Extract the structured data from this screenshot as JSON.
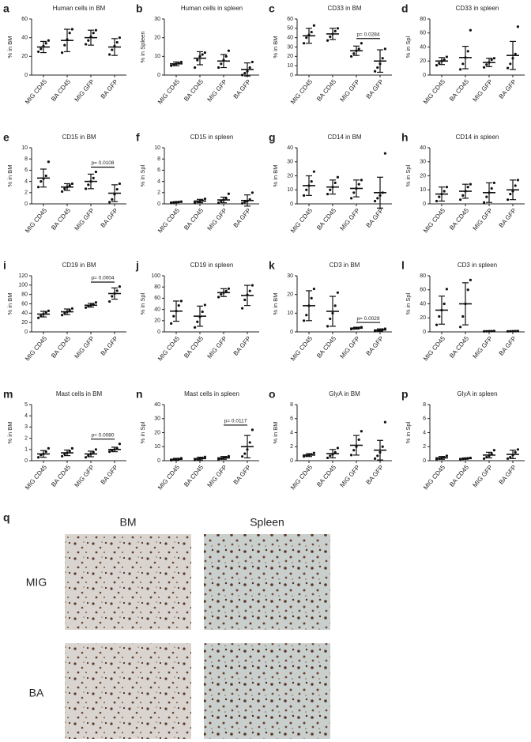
{
  "chart_data": [
    {
      "type": "dot",
      "letter": "a",
      "title": "Human cells in BM",
      "ylabel": "% in BM",
      "categories": [
        "MIG CD45",
        "BA CD45",
        "MIG GFP",
        "BA GFP"
      ],
      "ylim": [
        0,
        60
      ],
      "yticks": [
        0,
        20,
        40,
        60
      ],
      "groups": [
        {
          "mean": 30,
          "sd": 6,
          "points": [
            25,
            28,
            31,
            34,
            37
          ]
        },
        {
          "mean": 37,
          "sd": 12,
          "points": [
            24,
            32,
            38,
            45,
            49
          ]
        },
        {
          "mean": 40,
          "sd": 8,
          "points": [
            33,
            37,
            41,
            45,
            48
          ]
        },
        {
          "mean": 30,
          "sd": 9,
          "points": [
            22,
            27,
            31,
            35,
            40
          ]
        }
      ]
    },
    {
      "type": "dot",
      "letter": "b",
      "title": "Human cells in spleen",
      "ylabel": "% in Spleen",
      "categories": [
        "MIG CD45",
        "BA CD45",
        "MIG GFP",
        "BA GFP"
      ],
      "ylim": [
        0,
        30
      ],
      "yticks": [
        0,
        10,
        20,
        30
      ],
      "groups": [
        {
          "mean": 6,
          "sd": 1,
          "points": [
            5,
            5.5,
            6,
            6.5,
            7
          ]
        },
        {
          "mean": 9,
          "sd": 3.5,
          "points": [
            4,
            8,
            10,
            11,
            12
          ]
        },
        {
          "mean": 7.5,
          "sd": 3.5,
          "points": [
            4,
            6,
            8,
            10,
            13
          ]
        },
        {
          "mean": 3,
          "sd": 3.5,
          "points": [
            0,
            1,
            2,
            4,
            7
          ]
        }
      ]
    },
    {
      "type": "dot",
      "letter": "c",
      "title": "CD33 in BM",
      "ylabel": "% in BM",
      "categories": [
        "MIG CD45",
        "BA CD45",
        "MIG GFP",
        "BA GFP"
      ],
      "ylim": [
        0,
        60
      ],
      "yticks": [
        0,
        10,
        20,
        30,
        40,
        50,
        60
      ],
      "groups": [
        {
          "mean": 42,
          "sd": 8,
          "points": [
            34,
            40,
            43,
            46,
            53
          ]
        },
        {
          "mean": 44,
          "sd": 6,
          "points": [
            37,
            41,
            44,
            47,
            50
          ]
        },
        {
          "mean": 26,
          "sd": 5,
          "points": [
            20,
            23,
            26,
            28,
            34
          ]
        },
        {
          "mean": 15,
          "sd": 12,
          "points": [
            4,
            8,
            12,
            18,
            28
          ]
        }
      ],
      "p_label": "p= 0.0284"
    },
    {
      "type": "dot",
      "letter": "d",
      "title": "CD33 in spleen",
      "ylabel": "% in Spl",
      "categories": [
        "MIG CD45",
        "BA CD45",
        "MIG GFP",
        "BA GFP"
      ],
      "ylim": [
        0,
        80
      ],
      "yticks": [
        0,
        20,
        40,
        60,
        80
      ],
      "groups": [
        {
          "mean": 20,
          "sd": 5,
          "points": [
            14,
            17,
            20,
            22,
            26
          ]
        },
        {
          "mean": 25,
          "sd": 16,
          "points": [
            8,
            16,
            25,
            34,
            64
          ]
        },
        {
          "mean": 18,
          "sd": 6,
          "points": [
            11,
            15,
            18,
            22,
            24
          ]
        },
        {
          "mean": 28,
          "sd": 20,
          "points": [
            10,
            16,
            24,
            30,
            69
          ]
        }
      ]
    },
    {
      "type": "dot",
      "letter": "e",
      "title": "CD15 in BM",
      "ylabel": "% in BM",
      "categories": [
        "MIG CD45",
        "BA CD45",
        "MIG GFP",
        "BA GFP"
      ],
      "ylim": [
        0,
        10
      ],
      "yticks": [
        0,
        2,
        4,
        6,
        8,
        10
      ],
      "groups": [
        {
          "mean": 4.6,
          "sd": 1.6,
          "points": [
            3,
            4,
            4.5,
            5,
            7.5
          ]
        },
        {
          "mean": 3,
          "sd": 0.6,
          "points": [
            2.2,
            2.7,
            3,
            3.3,
            3.6
          ]
        },
        {
          "mean": 4,
          "sd": 1.3,
          "points": [
            2.7,
            3.4,
            4,
            4.6,
            5.7
          ]
        },
        {
          "mean": 1.9,
          "sd": 1.5,
          "points": [
            0.3,
            0.8,
            1.7,
            2.6,
            3.6
          ]
        }
      ],
      "p_label": "p= 0.0108"
    },
    {
      "type": "dot",
      "letter": "f",
      "title": "CD15 in spleen",
      "ylabel": "% in Spl",
      "categories": [
        "MIG CD45",
        "BA CD45",
        "MIG GFP",
        "BA GFP"
      ],
      "ylim": [
        0,
        10
      ],
      "yticks": [
        0,
        2,
        4,
        6,
        8,
        10
      ],
      "groups": [
        {
          "mean": 0.3,
          "sd": 0.1,
          "points": [
            0.2,
            0.25,
            0.3,
            0.35,
            0.4
          ]
        },
        {
          "mean": 0.5,
          "sd": 0.3,
          "points": [
            0.2,
            0.4,
            0.5,
            0.6,
            0.9
          ]
        },
        {
          "mean": 0.7,
          "sd": 0.5,
          "points": [
            0.2,
            0.5,
            0.7,
            1,
            1.8
          ]
        },
        {
          "mean": 0.6,
          "sd": 1,
          "points": [
            0.1,
            0.3,
            0.5,
            0.8,
            2
          ]
        }
      ]
    },
    {
      "type": "dot",
      "letter": "g",
      "title": "CD14 in BM",
      "ylabel": "% in BM",
      "categories": [
        "MIG CD45",
        "BA CD45",
        "MIG GFP",
        "BA GFP"
      ],
      "ylim": [
        0,
        40
      ],
      "yticks": [
        0,
        10,
        20,
        30,
        40
      ],
      "groups": [
        {
          "mean": 13,
          "sd": 7,
          "points": [
            6,
            10,
            13,
            16,
            23
          ]
        },
        {
          "mean": 12,
          "sd": 5,
          "points": [
            7,
            10,
            12,
            15,
            19
          ]
        },
        {
          "mean": 11,
          "sd": 6,
          "points": [
            4,
            8,
            11,
            14,
            17
          ]
        },
        {
          "mean": 8,
          "sd": 11,
          "points": [
            2,
            4,
            6,
            8,
            36
          ]
        }
      ]
    },
    {
      "type": "dot",
      "letter": "h",
      "title": "CD14 in spleen",
      "ylabel": "% in Spl",
      "categories": [
        "MIG CD45",
        "BA CD45",
        "MIG GFP",
        "BA GFP"
      ],
      "ylim": [
        0,
        40
      ],
      "yticks": [
        0,
        10,
        20,
        30,
        40
      ],
      "groups": [
        {
          "mean": 7,
          "sd": 5,
          "points": [
            2,
            5,
            7,
            9,
            12
          ]
        },
        {
          "mean": 9,
          "sd": 5,
          "points": [
            3,
            6,
            9,
            12,
            14
          ]
        },
        {
          "mean": 8,
          "sd": 7,
          "points": [
            1,
            5,
            8,
            11,
            15
          ]
        },
        {
          "mean": 10,
          "sd": 7,
          "points": [
            3,
            7,
            9,
            13,
            17
          ]
        }
      ]
    },
    {
      "type": "dot",
      "letter": "i",
      "title": "CD19 in BM",
      "ylabel": "% in BM",
      "categories": [
        "MIG CD45",
        "BA CD45",
        "MIG GFP",
        "BA GFP"
      ],
      "ylim": [
        0,
        120
      ],
      "yticks": [
        0,
        20,
        40,
        60,
        80,
        100,
        120
      ],
      "groups": [
        {
          "mean": 38,
          "sd": 6,
          "points": [
            30,
            34,
            38,
            42,
            45
          ]
        },
        {
          "mean": 43,
          "sd": 6,
          "points": [
            36,
            40,
            43,
            46,
            50
          ]
        },
        {
          "mean": 57,
          "sd": 4,
          "points": [
            52,
            55,
            57,
            59,
            63
          ]
        },
        {
          "mean": 82,
          "sd": 12,
          "points": [
            65,
            76,
            82,
            88,
            97
          ]
        }
      ],
      "p_label": "p= 0.0004"
    },
    {
      "type": "dot",
      "letter": "j",
      "title": "CD19 in spleen",
      "ylabel": "% in Spl",
      "categories": [
        "MIG CD45",
        "BA CD45",
        "MIG GFP",
        "BA GFP"
      ],
      "ylim": [
        0,
        100
      ],
      "yticks": [
        0,
        20,
        40,
        60,
        80,
        100
      ],
      "groups": [
        {
          "mean": 37,
          "sd": 18,
          "points": [
            15,
            28,
            37,
            47,
            55
          ]
        },
        {
          "mean": 28,
          "sd": 18,
          "points": [
            8,
            18,
            27,
            36,
            48
          ]
        },
        {
          "mean": 70,
          "sd": 7,
          "points": [
            62,
            67,
            70,
            73,
            77
          ]
        },
        {
          "mean": 65,
          "sd": 18,
          "points": [
            42,
            57,
            66,
            73,
            83
          ]
        }
      ]
    },
    {
      "type": "dot",
      "letter": "k",
      "title": "CD3 in BM",
      "ylabel": "% in BM",
      "categories": [
        "MIG CD45",
        "BA CD45",
        "MIG GFP",
        "BA GFP"
      ],
      "ylim": [
        0,
        30
      ],
      "yticks": [
        0,
        10,
        20,
        30
      ],
      "groups": [
        {
          "mean": 14,
          "sd": 8,
          "points": [
            6,
            9,
            14,
            18,
            23
          ]
        },
        {
          "mean": 11,
          "sd": 8,
          "points": [
            3,
            7,
            10,
            14,
            21
          ]
        },
        {
          "mean": 2,
          "sd": 0.5,
          "points": [
            1.5,
            1.8,
            2,
            2.2,
            2.5
          ]
        },
        {
          "mean": 1,
          "sd": 0.6,
          "points": [
            0.4,
            0.7,
            1,
            1.3,
            1.7
          ]
        }
      ],
      "p_label": "p= 0.0029"
    },
    {
      "type": "dot",
      "letter": "l",
      "title": "CD3 in spleen",
      "ylabel": "% in Spl",
      "categories": [
        "MIG CD45",
        "BA CD45",
        "MIG GFP",
        "BA GFP"
      ],
      "ylim": [
        0,
        80
      ],
      "yticks": [
        0,
        20,
        40,
        60,
        80
      ],
      "groups": [
        {
          "mean": 31,
          "sd": 20,
          "points": [
            10,
            22,
            31,
            40,
            61
          ]
        },
        {
          "mean": 40,
          "sd": 30,
          "points": [
            7,
            22,
            40,
            60,
            74
          ]
        },
        {
          "mean": 1,
          "sd": 0.3,
          "points": [
            0.7,
            0.9,
            1,
            1.1,
            1.3
          ]
        },
        {
          "mean": 1,
          "sd": 0.3,
          "points": [
            0.7,
            0.9,
            1,
            1.1,
            1.3
          ]
        }
      ]
    },
    {
      "type": "dot",
      "letter": "m",
      "title": "Mast cells in BM",
      "ylabel": "% in BM",
      "categories": [
        "MIG CD45",
        "BA CD45",
        "MIG GFP",
        "BA GFP"
      ],
      "ylim": [
        0,
        5
      ],
      "yticks": [
        0,
        1,
        2,
        3,
        4,
        5
      ],
      "groups": [
        {
          "mean": 0.6,
          "sd": 0.3,
          "points": [
            0.3,
            0.5,
            0.6,
            0.8,
            1.1
          ]
        },
        {
          "mean": 0.7,
          "sd": 0.25,
          "points": [
            0.4,
            0.6,
            0.7,
            0.85,
            1.1
          ]
        },
        {
          "mean": 0.6,
          "sd": 0.25,
          "points": [
            0.3,
            0.45,
            0.6,
            0.75,
            1
          ]
        },
        {
          "mean": 1,
          "sd": 0.2,
          "points": [
            0.8,
            0.9,
            1,
            1.1,
            1.5
          ]
        }
      ],
      "p_label": "p= 0.0080"
    },
    {
      "type": "dot",
      "letter": "n",
      "title": "Mast cells in spleen",
      "ylabel": "% in Spl",
      "categories": [
        "MIG CD45",
        "BA CD45",
        "MIG GFP",
        "BA GFP"
      ],
      "ylim": [
        0,
        40
      ],
      "yticks": [
        0,
        10,
        20,
        30,
        40
      ],
      "groups": [
        {
          "mean": 1,
          "sd": 0.7,
          "points": [
            0.3,
            0.7,
            1,
            1.3,
            1.8
          ]
        },
        {
          "mean": 1.5,
          "sd": 1,
          "points": [
            0.5,
            1,
            1.5,
            2,
            2.7
          ]
        },
        {
          "mean": 2,
          "sd": 1,
          "points": [
            1,
            1.5,
            2,
            2.5,
            3.2
          ]
        },
        {
          "mean": 10,
          "sd": 8,
          "points": [
            3,
            5,
            8,
            13,
            22
          ]
        }
      ],
      "p_label": "p= 0.0117"
    },
    {
      "type": "dot",
      "letter": "o",
      "title": "GlyA in BM",
      "ylabel": "% in BM",
      "categories": [
        "MIG CD45",
        "BA CD45",
        "MIG GFP",
        "BA GFP"
      ],
      "ylim": [
        0,
        8
      ],
      "yticks": [
        0,
        2,
        4,
        6,
        8
      ],
      "groups": [
        {
          "mean": 0.8,
          "sd": 0.2,
          "points": [
            0.6,
            0.7,
            0.8,
            0.9,
            1.1
          ]
        },
        {
          "mean": 1,
          "sd": 0.6,
          "points": [
            0.4,
            0.7,
            0.9,
            1.2,
            1.8
          ]
        },
        {
          "mean": 2.2,
          "sd": 1.4,
          "points": [
            0.8,
            1.5,
            2,
            3,
            4.2
          ]
        },
        {
          "mean": 1.5,
          "sd": 1.4,
          "points": [
            0.3,
            0.7,
            1.2,
            2,
            5.5
          ]
        }
      ]
    },
    {
      "type": "dot",
      "letter": "p",
      "title": "GlyA in spleen",
      "ylabel": "% in Spl",
      "categories": [
        "MIG CD45",
        "BA CD45",
        "MIG GFP",
        "BA GFP"
      ],
      "ylim": [
        0,
        8
      ],
      "yticks": [
        0,
        2,
        4,
        6,
        8
      ],
      "groups": [
        {
          "mean": 0.4,
          "sd": 0.2,
          "points": [
            0.2,
            0.3,
            0.4,
            0.5,
            0.7
          ]
        },
        {
          "mean": 0.3,
          "sd": 0.1,
          "points": [
            0.2,
            0.25,
            0.3,
            0.35,
            0.4
          ]
        },
        {
          "mean": 0.8,
          "sd": 0.4,
          "points": [
            0.3,
            0.5,
            0.7,
            1,
            1.5
          ]
        },
        {
          "mean": 0.9,
          "sd": 0.6,
          "points": [
            0.3,
            0.5,
            0.8,
            1.2,
            1.6
          ]
        }
      ]
    }
  ],
  "histology": {
    "letter": "q",
    "columns": [
      "BM",
      "Spleen"
    ],
    "rows": [
      "MIG",
      "BA"
    ]
  }
}
